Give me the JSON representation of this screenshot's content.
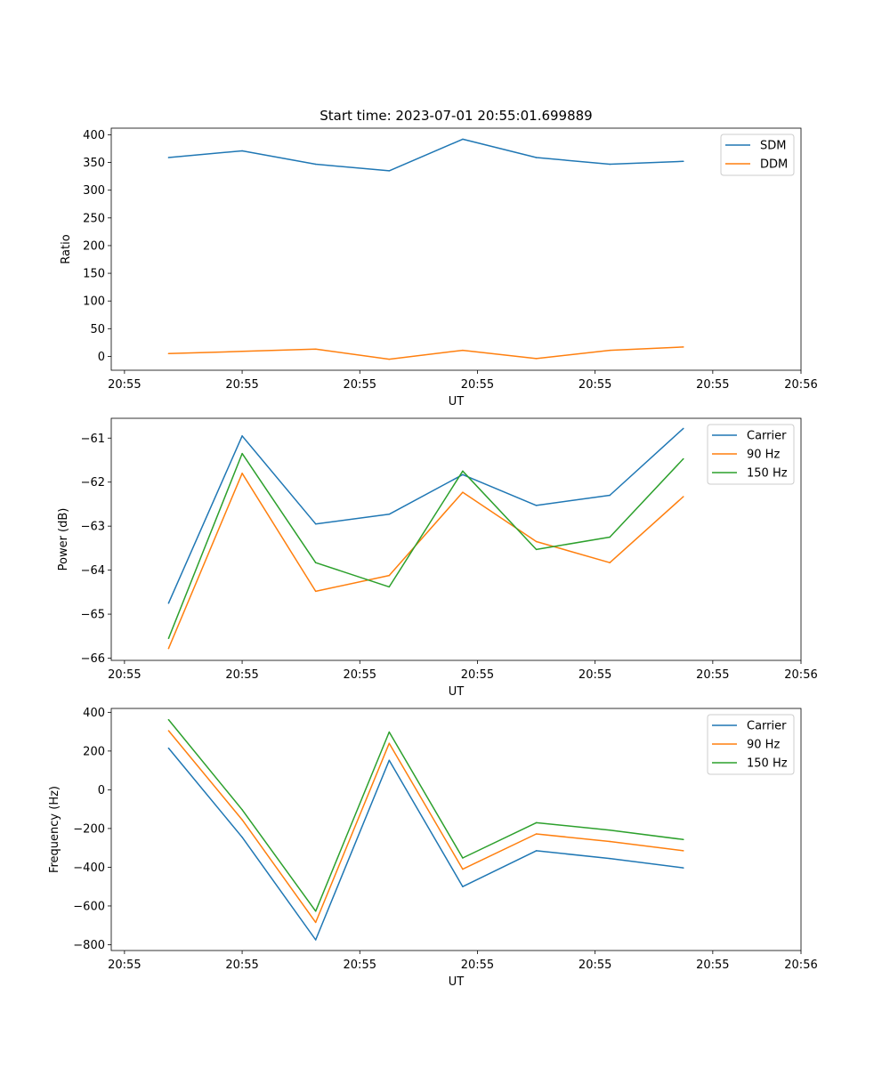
{
  "chart_data": [
    {
      "type": "line",
      "title": "Start time: 2023-07-01 20:55:01.699889",
      "xlabel": "UT",
      "ylabel": "Ratio",
      "xlim": [
        -0.38,
        9.0
      ],
      "x": [
        0.4,
        1.4,
        2.4,
        3.4,
        4.4,
        5.4,
        6.4,
        7.4
      ],
      "x_ticks": [
        -0.2,
        1.4,
        3.0,
        4.6,
        6.2,
        7.8,
        9.0
      ],
      "x_tick_labels": [
        "20:55",
        "20:55",
        "20:55",
        "20:55",
        "20:55",
        "20:55",
        "20:56"
      ],
      "ylim": [
        -25,
        412
      ],
      "y_ticks": [
        0,
        50,
        100,
        150,
        200,
        250,
        300,
        350,
        400
      ],
      "y_tick_labels": [
        "0",
        "50",
        "100",
        "150",
        "200",
        "250",
        "300",
        "350",
        "400"
      ],
      "legend_position": "top-right",
      "series": [
        {
          "name": "SDM",
          "color": "#1f77b4",
          "values": [
            359,
            371,
            347,
            335,
            392,
            359,
            347,
            352
          ]
        },
        {
          "name": "DDM",
          "color": "#ff7f0e",
          "values": [
            5,
            9,
            13,
            -5,
            11,
            -4,
            11,
            17
          ]
        }
      ]
    },
    {
      "type": "line",
      "title": "",
      "xlabel": "UT",
      "ylabel": "Power (dB)",
      "xlim": [
        -0.38,
        9.0
      ],
      "x": [
        0.4,
        1.4,
        2.4,
        3.4,
        4.4,
        5.4,
        6.4,
        7.4
      ],
      "x_ticks": [
        -0.2,
        1.4,
        3.0,
        4.6,
        6.2,
        7.8,
        9.0
      ],
      "x_tick_labels": [
        "20:55",
        "20:55",
        "20:55",
        "20:55",
        "20:55",
        "20:55",
        "20:56"
      ],
      "ylim": [
        -66.05,
        -60.55
      ],
      "y_ticks": [
        -66,
        -65,
        -64,
        -63,
        -62,
        -61
      ],
      "y_tick_labels": [
        "−66",
        "−65",
        "−64",
        "−63",
        "−62",
        "−61"
      ],
      "legend_position": "top-right",
      "series": [
        {
          "name": "Carrier",
          "color": "#1f77b4",
          "values": [
            -64.75,
            -60.95,
            -62.95,
            -62.73,
            -61.83,
            -62.53,
            -62.3,
            -60.78
          ]
        },
        {
          "name": "90 Hz",
          "color": "#ff7f0e",
          "values": [
            -65.78,
            -61.8,
            -64.48,
            -64.12,
            -62.23,
            -63.35,
            -63.83,
            -62.33
          ]
        },
        {
          "name": "150 Hz",
          "color": "#2ca02c",
          "values": [
            -65.55,
            -61.35,
            -63.83,
            -64.38,
            -61.75,
            -63.53,
            -63.25,
            -61.47
          ]
        }
      ]
    },
    {
      "type": "line",
      "title": "",
      "xlabel": "UT",
      "ylabel": "Frequency (Hz)",
      "xlim": [
        -0.38,
        9.0
      ],
      "x": [
        0.4,
        1.4,
        2.4,
        3.4,
        4.4,
        5.4,
        6.4,
        7.4
      ],
      "x_ticks": [
        -0.2,
        1.4,
        3.0,
        4.6,
        6.2,
        7.8,
        9.0
      ],
      "x_tick_labels": [
        "20:55",
        "20:55",
        "20:55",
        "20:55",
        "20:55",
        "20:55",
        "20:56"
      ],
      "ylim": [
        -830,
        420
      ],
      "y_ticks": [
        -800,
        -600,
        -400,
        -200,
        0,
        200,
        400
      ],
      "y_tick_labels": [
        "−800",
        "−600",
        "−400",
        "−200",
        "0",
        "200",
        "400"
      ],
      "legend_position": "top-right",
      "series": [
        {
          "name": "Carrier",
          "color": "#1f77b4",
          "values": [
            215,
            -245,
            -775,
            152,
            -500,
            -315,
            -355,
            -403
          ]
        },
        {
          "name": "90 Hz",
          "color": "#ff7f0e",
          "values": [
            305,
            -155,
            -685,
            240,
            -410,
            -228,
            -267,
            -315
          ]
        },
        {
          "name": "150 Hz",
          "color": "#2ca02c",
          "values": [
            362,
            -103,
            -627,
            298,
            -352,
            -170,
            -208,
            -257
          ]
        }
      ]
    }
  ]
}
